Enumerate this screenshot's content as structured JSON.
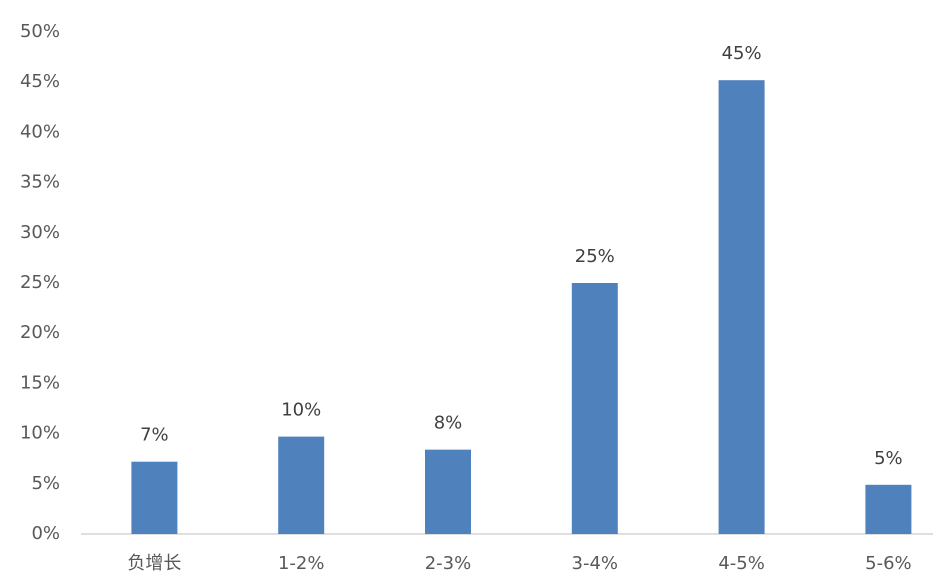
{
  "chart_data": {
    "type": "bar",
    "categories": [
      "负增长",
      "1-2%",
      "2-3%",
      "3-4%",
      "4-5%",
      "5-6%"
    ],
    "values": [
      7.2,
      9.7,
      8.4,
      25,
      45.2,
      4.9
    ],
    "value_labels": [
      "7%",
      "10%",
      "8%",
      "25%",
      "45%",
      "5%"
    ],
    "color": "#4f81bd",
    "ylim": [
      0,
      50
    ],
    "yticks": [
      {
        "value": 0,
        "label": "0%"
      },
      {
        "value": 5,
        "label": "5%"
      },
      {
        "value": 10,
        "label": "10%"
      },
      {
        "value": 15,
        "label": "15%"
      },
      {
        "value": 20,
        "label": "20%"
      },
      {
        "value": 25,
        "label": "25%"
      },
      {
        "value": 30,
        "label": "30%"
      },
      {
        "value": 35,
        "label": "35%"
      },
      {
        "value": 40,
        "label": "40%"
      },
      {
        "value": 45,
        "label": "45%"
      },
      {
        "value": 50,
        "label": "50%"
      }
    ],
    "grid": false
  }
}
